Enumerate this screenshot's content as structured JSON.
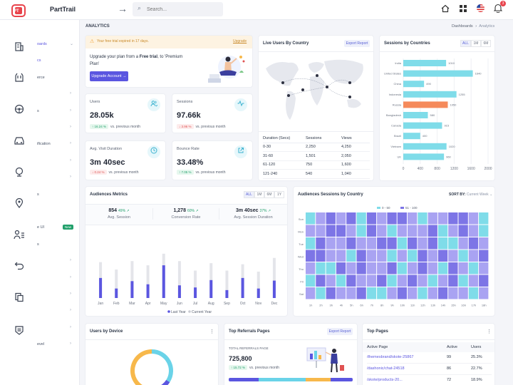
{
  "app": {
    "brand": "PartTrail",
    "logo_text": "PT",
    "search_placeholder": "Search...",
    "notif_count": "3"
  },
  "page": {
    "title": "ANALYTICS",
    "crumb_root": "Dashboards",
    "crumb_sep": "›",
    "crumb_current": "Analytics"
  },
  "sidebar": {
    "items": [
      {
        "label": "oards",
        "chev": "⌄",
        "active": true
      },
      {
        "label": "cs",
        "chev": "",
        "active": true
      },
      {
        "label": "erce",
        "chev": ""
      },
      {
        "label": "",
        "chev": "›"
      },
      {
        "label": "s",
        "chev": "›"
      },
      {
        "label": "",
        "chev": "›"
      },
      {
        "label": "ification",
        "chev": "›"
      },
      {
        "label": "",
        "chev": "›"
      },
      {
        "label": "",
        "chev": "›"
      },
      {
        "label": "s",
        "chev": ""
      },
      {
        "label": "",
        "chev": ""
      },
      {
        "label": "e UI",
        "chev": "",
        "badge": "New"
      },
      {
        "label": "s",
        "chev": ""
      },
      {
        "label": "",
        "chev": "›"
      },
      {
        "label": "",
        "chev": "›"
      },
      {
        "label": "",
        "chev": "›"
      },
      {
        "label": "",
        "chev": "›"
      },
      {
        "label": "",
        "chev": "›"
      },
      {
        "label": "evel",
        "chev": "›"
      }
    ]
  },
  "trial": {
    "notice": "Your free trial expired in 17 days.",
    "upgrade_link": "Upgrade",
    "line1_a": "Upgrade your plan from a ",
    "line1_b": "Free trial",
    "line1_c": ", to 'Premium",
    "line2": "Plan'",
    "button": "Upgrade Account",
    "button_arrow": "→"
  },
  "stats": [
    {
      "label": "Users",
      "value": "28.05k",
      "delta": "↑ 16.24 %",
      "dir": "up",
      "note": "vs. previous month",
      "icon": "users-icon"
    },
    {
      "label": "Sessions",
      "value": "97.66k",
      "delta": "↓ 3.96 %",
      "dir": "down",
      "note": "vs. previous month",
      "icon": "activity-icon"
    },
    {
      "label": "Avg. Visit Duration",
      "value": "3m 40sec",
      "delta": "↓ 0.24 %",
      "dir": "down",
      "note": "vs. previous month",
      "icon": "clock-icon"
    },
    {
      "label": "Bounce Rate",
      "value": "33.48%",
      "delta": "↑ 7.05 %",
      "dir": "up",
      "note": "vs. previous month",
      "icon": "external-link-icon"
    }
  ],
  "live": {
    "title": "Live Users By Country",
    "export": "Export Report",
    "headers": [
      "Duration (Secs)",
      "Sessions",
      "Views"
    ],
    "rows": [
      [
        "0-30",
        "2,250",
        "4,250"
      ],
      [
        "31-60",
        "1,501",
        "2,050"
      ],
      [
        "61-120",
        "750",
        "1,600"
      ],
      [
        "121-240",
        "540",
        "1,040"
      ]
    ]
  },
  "countries": {
    "title": "Sessions by Countries",
    "filters": [
      "ALL",
      "1M",
      "6M"
    ],
    "chart_data": {
      "type": "bar",
      "orientation": "horizontal",
      "categories": [
        "India",
        "United States",
        "China",
        "Indonesia",
        "Russia",
        "Bangladesh",
        "Canada",
        "Brazil",
        "Vietnam",
        "UK"
      ],
      "values": [
        1010,
        1640,
        490,
        1255,
        1050,
        580,
        915,
        400,
        1020,
        960
      ],
      "highlight_index": 4,
      "xlim": [
        0,
        2000
      ],
      "xticks": [
        "0",
        "400",
        "800",
        "1200",
        "1600",
        "2000"
      ],
      "colors": {
        "bar": "#7fdce9",
        "highlight": "#f58a5b"
      }
    }
  },
  "audiences": {
    "title": "Audiences Metrics",
    "filters": [
      "ALL",
      "1M",
      "6M",
      "1Y"
    ],
    "metrics": [
      {
        "value": "854",
        "delta": "49% ↗",
        "label": "Avg. Session"
      },
      {
        "value": "1,278",
        "delta": "60% ↗",
        "label": "Conversion Rate"
      },
      {
        "value": "3m 40sec",
        "delta": "37% ↗",
        "label": "Avg. Session Duration"
      }
    ],
    "chart_data": {
      "type": "bar",
      "categories": [
        "Jan",
        "Feb",
        "Mar",
        "Apr",
        "May",
        "Jun",
        "Jul",
        "Aug",
        "Sep",
        "Oct",
        "Nov",
        "Dec"
      ],
      "ylim": [
        0,
        100
      ],
      "series": [
        {
          "name": "Last Year",
          "values": [
            38,
            18,
            32,
            26,
            62,
            24,
            20,
            34,
            15,
            38,
            18,
            33
          ],
          "color": "#5b56e0"
        },
        {
          "name": "Current Year",
          "values": [
            68,
            54,
            70,
            62,
            84,
            70,
            52,
            66,
            52,
            64,
            50,
            76
          ],
          "color": "#e4e5ea"
        }
      ]
    }
  },
  "heat": {
    "title": "Audiences Sessions by Country",
    "sort_label": "SORT BY:",
    "sort_value": "Current Week ⌄",
    "legend": [
      "0 - 50",
      "51 - 100"
    ],
    "chart_data": {
      "type": "heatmap",
      "rows": [
        "Sun",
        "Mon",
        "Tue",
        "Wed",
        "Thu",
        "Fri",
        "Sat"
      ],
      "cols": [
        "1h",
        "2h",
        "3h",
        "4h",
        "5h",
        "6h",
        "7h",
        "8h",
        "9h",
        "10h",
        "11h",
        "12h",
        "13h",
        "14h",
        "15h",
        "16h",
        "17h",
        "18h"
      ],
      "colors": [
        "#7fdce9",
        "#a9a3f2",
        "#7d75e6"
      ],
      "values": [
        [
          0,
          1,
          2,
          1,
          2,
          0,
          2,
          1,
          2,
          2,
          1,
          0,
          1,
          1,
          2,
          2,
          1,
          0
        ],
        [
          1,
          1,
          2,
          2,
          1,
          0,
          2,
          1,
          0,
          1,
          1,
          1,
          2,
          0,
          1,
          2,
          1,
          0
        ],
        [
          0,
          2,
          1,
          1,
          2,
          1,
          1,
          2,
          2,
          0,
          2,
          1,
          2,
          0,
          0,
          1,
          2,
          1
        ],
        [
          2,
          2,
          1,
          1,
          0,
          2,
          1,
          1,
          0,
          1,
          0,
          2,
          1,
          2,
          1,
          0,
          1,
          2
        ],
        [
          1,
          0,
          0,
          2,
          1,
          2,
          1,
          1,
          2,
          0,
          1,
          2,
          1,
          0,
          2,
          1,
          0,
          1
        ],
        [
          0,
          2,
          1,
          0,
          2,
          1,
          1,
          2,
          0,
          1,
          2,
          1,
          0,
          1,
          2,
          0,
          1,
          2
        ],
        [
          1,
          0,
          2,
          1,
          1,
          2,
          0,
          0,
          1,
          2,
          1,
          0,
          1,
          2,
          1,
          1,
          0,
          1
        ]
      ]
    }
  },
  "device": {
    "title": "Users by Device",
    "menu": "⋮",
    "chart_data": {
      "type": "pie",
      "slices": [
        {
          "value": 34,
          "color": "#6ad3e8"
        },
        {
          "value": 22,
          "color": "#5b56e0"
        },
        {
          "value": 44,
          "color": "#f7b84b"
        }
      ]
    }
  },
  "referrals": {
    "title": "Top Referrals Pages",
    "export": "Export Report",
    "total_label": "TOTAL REFERRALS PAGE",
    "total": "725,800",
    "delta": "↑ 15.72 %",
    "note": "vs. previous month",
    "segments": [
      {
        "value": 24,
        "color": "#5b56e0"
      },
      {
        "value": 20,
        "color": "#6ad3e8"
      },
      {
        "value": 18,
        "color": "#6ad3e8"
      },
      {
        "value": 20,
        "color": "#f7b84b"
      },
      {
        "value": 18,
        "color": "#5b56e0"
      }
    ]
  },
  "toppages": {
    "title": "Top Pages",
    "menu": "⋮",
    "headers": [
      "Active Page",
      "Active",
      "Users"
    ],
    "rows": [
      [
        "/themesbrand/skote-25867",
        "99",
        "25.3%"
      ],
      [
        "/dashonic/chat-24518",
        "86",
        "22.7%"
      ],
      [
        "/skote/products-20...",
        "72",
        "18.9%"
      ]
    ]
  }
}
